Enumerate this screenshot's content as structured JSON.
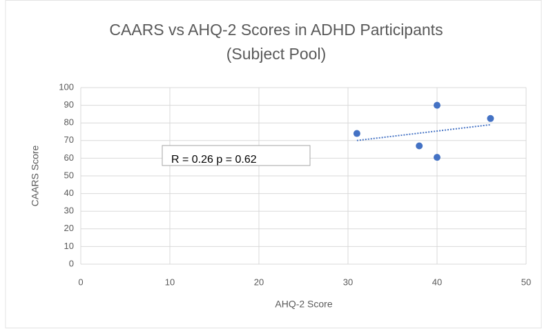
{
  "chart_data": {
    "type": "scatter",
    "title": [
      "CAARS vs AHQ-2 Scores in ADHD Participants",
      "(Subject Pool)"
    ],
    "x_label": "AHQ-2 Score",
    "y_label": "CAARS Score",
    "annotation": "R = 0.26 p = 0.62",
    "series": [
      {
        "name": "CAARS",
        "color": "#4472c4",
        "x": [
          31,
          38,
          40,
          40,
          46
        ],
        "values": [
          74,
          67,
          90,
          60.5,
          82.5
        ]
      }
    ],
    "trendline": "linear",
    "xlim": [
      0,
      50
    ],
    "xticks": [
      0,
      10,
      20,
      30,
      40,
      50
    ],
    "ylim": [
      0,
      100
    ],
    "yticks": [
      0,
      10,
      20,
      30,
      40,
      50,
      60,
      70,
      80,
      90,
      100
    ],
    "grid": true
  }
}
